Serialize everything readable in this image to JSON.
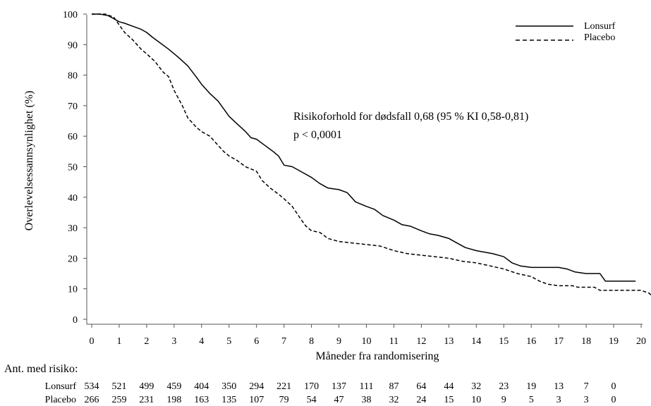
{
  "chart_data": {
    "type": "line",
    "title": "",
    "xlabel": "Måneder fra randomisering",
    "ylabel": "Overlevelsessannsynlighet (%)",
    "xlim": [
      0,
      20
    ],
    "ylim": [
      0,
      100
    ],
    "x_ticks": [
      "0",
      "1",
      "2",
      "3",
      "4",
      "5",
      "6",
      "7",
      "8",
      "9",
      "10",
      "11",
      "12",
      "13",
      "14",
      "15",
      "16",
      "17",
      "18",
      "19",
      "20"
    ],
    "y_ticks": [
      "0",
      "10",
      "20",
      "30",
      "40",
      "50",
      "60",
      "70",
      "80",
      "90",
      "100"
    ],
    "grid": false,
    "legend_position": "top-right",
    "annotation": {
      "line1": "Risikoforhold for dødsfall 0,68 (95 % KI 0,58-0,81)",
      "line2": "p < 0,0001"
    },
    "series": [
      {
        "name": "Lonsurf",
        "style": "solid",
        "points": [
          [
            0,
            100
          ],
          [
            0.3,
            100
          ],
          [
            0.6,
            99.5
          ],
          [
            0.8,
            98.5
          ],
          [
            1,
            97.5
          ],
          [
            1.2,
            97
          ],
          [
            1.5,
            96
          ],
          [
            1.8,
            95
          ],
          [
            2,
            94
          ],
          [
            2.2,
            92.5
          ],
          [
            2.5,
            90.5
          ],
          [
            2.8,
            88.5
          ],
          [
            3,
            87
          ],
          [
            3.2,
            85.5
          ],
          [
            3.5,
            83
          ],
          [
            3.8,
            79.5
          ],
          [
            4,
            77
          ],
          [
            4.3,
            74
          ],
          [
            4.6,
            71.5
          ],
          [
            4.8,
            69
          ],
          [
            5,
            66.5
          ],
          [
            5.3,
            64
          ],
          [
            5.6,
            61.5
          ],
          [
            5.8,
            59.5
          ],
          [
            6,
            59
          ],
          [
            6.3,
            57
          ],
          [
            6.6,
            55
          ],
          [
            6.8,
            53.5
          ],
          [
            7,
            50.5
          ],
          [
            7.3,
            50
          ],
          [
            7.6,
            48.5
          ],
          [
            8,
            46.5
          ],
          [
            8.3,
            44.5
          ],
          [
            8.6,
            43
          ],
          [
            9,
            42.5
          ],
          [
            9.3,
            41.5
          ],
          [
            9.6,
            38.5
          ],
          [
            10,
            37
          ],
          [
            10.3,
            36
          ],
          [
            10.6,
            34
          ],
          [
            11,
            32.5
          ],
          [
            11.3,
            31
          ],
          [
            11.6,
            30.5
          ],
          [
            12,
            29
          ],
          [
            12.3,
            28
          ],
          [
            12.6,
            27.5
          ],
          [
            13,
            26.5
          ],
          [
            13.3,
            25
          ],
          [
            13.6,
            23.5
          ],
          [
            14,
            22.5
          ],
          [
            14.3,
            22
          ],
          [
            14.6,
            21.5
          ],
          [
            15,
            20.5
          ],
          [
            15.3,
            18.5
          ],
          [
            15.6,
            17.5
          ],
          [
            16,
            17
          ],
          [
            17,
            17
          ],
          [
            17.3,
            16.5
          ],
          [
            17.6,
            15.5
          ],
          [
            18,
            15
          ],
          [
            18.5,
            15
          ],
          [
            18.7,
            12.5
          ],
          [
            19,
            12.5
          ],
          [
            19.8,
            12.5
          ]
        ]
      },
      {
        "name": "Placebo",
        "style": "dashed",
        "points": [
          [
            0,
            100
          ],
          [
            0.5,
            100
          ],
          [
            0.8,
            99
          ],
          [
            1,
            96.5
          ],
          [
            1.2,
            94
          ],
          [
            1.5,
            91.5
          ],
          [
            1.8,
            88.5
          ],
          [
            2,
            87
          ],
          [
            2.3,
            84.5
          ],
          [
            2.6,
            81
          ],
          [
            2.8,
            79.5
          ],
          [
            3,
            75
          ],
          [
            3.3,
            70
          ],
          [
            3.5,
            66
          ],
          [
            3.8,
            63
          ],
          [
            4,
            61.5
          ],
          [
            4.3,
            60
          ],
          [
            4.6,
            57
          ],
          [
            4.8,
            55
          ],
          [
            5,
            53.5
          ],
          [
            5.3,
            52
          ],
          [
            5.6,
            50
          ],
          [
            6,
            48.5
          ],
          [
            6.2,
            45.5
          ],
          [
            6.5,
            43
          ],
          [
            6.8,
            41
          ],
          [
            7,
            39.5
          ],
          [
            7.3,
            37
          ],
          [
            7.6,
            33
          ],
          [
            7.8,
            30.5
          ],
          [
            8,
            29
          ],
          [
            8.3,
            28.5
          ],
          [
            8.6,
            26.5
          ],
          [
            9,
            25.5
          ],
          [
            9.5,
            25
          ],
          [
            10,
            24.5
          ],
          [
            10.5,
            24
          ],
          [
            11,
            22.5
          ],
          [
            11.5,
            21.5
          ],
          [
            12,
            21
          ],
          [
            12.5,
            20.5
          ],
          [
            13,
            20
          ],
          [
            13.5,
            19
          ],
          [
            14,
            18.5
          ],
          [
            14.5,
            17.5
          ],
          [
            15,
            16.5
          ],
          [
            15.5,
            15
          ],
          [
            16,
            14
          ],
          [
            16.3,
            12.5
          ],
          [
            16.6,
            11.5
          ],
          [
            17,
            11
          ],
          [
            17.5,
            11
          ],
          [
            17.7,
            10.5
          ],
          [
            18.3,
            10.5
          ],
          [
            18.5,
            9.5
          ],
          [
            19,
            9.5
          ],
          [
            19.5,
            9.5
          ],
          [
            20,
            9.5
          ],
          [
            20.3,
            8.5
          ],
          [
            20.5,
            6.5
          ],
          [
            20.9,
            6.5
          ]
        ]
      }
    ],
    "risk_table": {
      "label": "Ant. med risiko:",
      "rows": [
        {
          "name": "Lonsurf",
          "values": [
            "534",
            "521",
            "499",
            "459",
            "404",
            "350",
            "294",
            "221",
            "170",
            "137",
            "111",
            "87",
            "64",
            "44",
            "32",
            "23",
            "19",
            "13",
            "7",
            "0"
          ]
        },
        {
          "name": "Placebo",
          "values": [
            "266",
            "259",
            "231",
            "198",
            "163",
            "135",
            "107",
            "79",
            "54",
            "47",
            "38",
            "32",
            "24",
            "15",
            "10",
            "9",
            "5",
            "3",
            "3",
            "0"
          ]
        }
      ]
    }
  }
}
